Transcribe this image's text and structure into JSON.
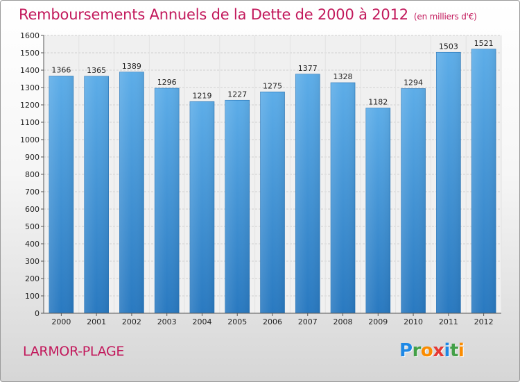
{
  "title": "Remboursements Annuels de la Dette de 2000 à 2012",
  "unit": "(en milliers d'€)",
  "commune": "LARMOR-PLAGE",
  "logo": {
    "p": "P",
    "r": "r",
    "o": "o",
    "x": "x",
    "i": "i",
    "t": "t",
    "i2": "i"
  },
  "colors": {
    "title": "#c2185b",
    "bar_top": "#5dade8",
    "bar_bottom": "#2979c0"
  },
  "chart_data": {
    "type": "bar",
    "categories": [
      "2000",
      "2001",
      "2002",
      "2003",
      "2004",
      "2005",
      "2006",
      "2007",
      "2008",
      "2009",
      "2010",
      "2011",
      "2012"
    ],
    "values": [
      1366,
      1365,
      1389,
      1296,
      1219,
      1227,
      1275,
      1377,
      1328,
      1182,
      1294,
      1503,
      1521
    ],
    "ylim": [
      0,
      1600
    ],
    "yticks": [
      0,
      100,
      200,
      300,
      400,
      500,
      600,
      700,
      800,
      900,
      1000,
      1100,
      1200,
      1300,
      1400,
      1500,
      1600
    ],
    "grid": true,
    "data_labels": true
  }
}
